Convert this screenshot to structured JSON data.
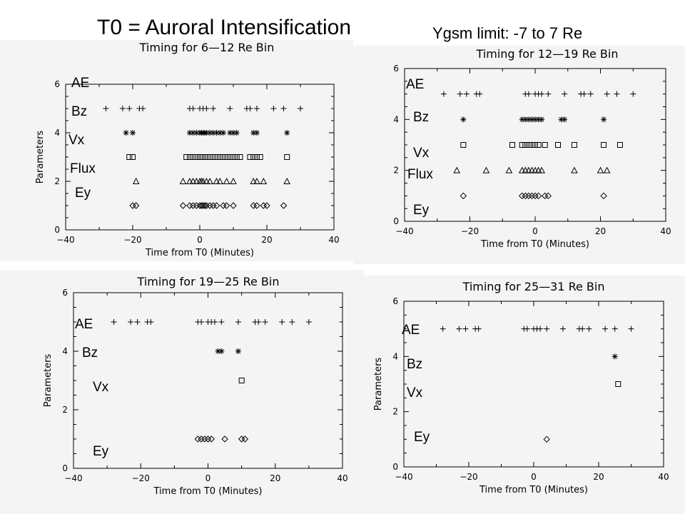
{
  "title": "T0 = Auroral Intensification",
  "subtitle": "Ygsm limit: -7 to 7 Re",
  "chart_data": [
    {
      "type": "scatter",
      "title": "Timing for 6—12 Re Bin",
      "xlabel": "Time from T0 (Minutes)",
      "ylabel": "Parameters",
      "xlim": [
        -40,
        40
      ],
      "ylim": [
        0,
        6
      ],
      "xticks": [
        "−40",
        "−20",
        "0",
        "20",
        "40"
      ],
      "yticks": [
        "0",
        "2",
        "4",
        "6"
      ],
      "row_labels": [
        "AE",
        "Bz",
        "Vx",
        "Flux",
        "Ey"
      ],
      "series": [
        {
          "name": "AE",
          "marker": "plus",
          "y": 5,
          "x": [
            -28,
            -23,
            -21,
            -18,
            -17,
            -3,
            -2,
            0,
            1,
            2,
            4,
            9,
            14,
            15,
            17,
            22,
            25,
            30
          ]
        },
        {
          "name": "Bz",
          "marker": "asterisk",
          "y": 4,
          "x": [
            -22,
            -20,
            -3,
            -2,
            -1,
            0,
            0.5,
            1,
            1.5,
            2,
            3,
            4,
            5,
            6,
            7,
            9,
            10,
            11,
            16,
            17,
            26
          ]
        },
        {
          "name": "Vx",
          "marker": "square",
          "y": 3,
          "x": [
            -21,
            -20,
            -4,
            -3,
            -2,
            -1,
            0,
            0.5,
            1,
            1.5,
            2,
            3,
            4,
            5,
            6,
            7,
            8,
            9,
            10,
            11,
            12,
            15,
            16,
            17,
            18,
            26
          ]
        },
        {
          "name": "Flux",
          "marker": "triangle",
          "y": 2,
          "x": [
            -19,
            -5,
            -3,
            -2,
            -1,
            0,
            0.5,
            1,
            2,
            3,
            5,
            6,
            8,
            10,
            16,
            17,
            19,
            26
          ]
        },
        {
          "name": "Ey",
          "marker": "diamond",
          "y": 1,
          "x": [
            -20,
            -19,
            -5,
            -3,
            -2,
            -1,
            0,
            0.5,
            1,
            1.5,
            2,
            3,
            4,
            5,
            7,
            8,
            10,
            16,
            17,
            19,
            20,
            25
          ]
        }
      ]
    },
    {
      "type": "scatter",
      "title": "Timing for 12—19 Re Bin",
      "xlabel": "Time from T0 (Minutes)",
      "ylabel": "",
      "xlim": [
        -40,
        40
      ],
      "ylim": [
        0,
        6
      ],
      "xticks": [
        "−40",
        "−20",
        "0",
        "20",
        "40"
      ],
      "yticks": [
        "0",
        "2",
        "4",
        "6"
      ],
      "row_labels": [
        "AE",
        "Bz",
        "Vx",
        "Flux",
        "Ey"
      ],
      "series": [
        {
          "name": "AE",
          "marker": "plus",
          "y": 5,
          "x": [
            -28,
            -23,
            -21,
            -18,
            -17,
            -3,
            -2,
            0,
            1,
            2,
            4,
            9,
            14,
            15,
            17,
            22,
            25,
            30
          ]
        },
        {
          "name": "Bz",
          "marker": "asterisk",
          "y": 4,
          "x": [
            -22,
            -4,
            -3,
            -2,
            -1,
            0,
            1,
            2,
            8,
            9,
            21
          ]
        },
        {
          "name": "Vx",
          "marker": "square",
          "y": 3,
          "x": [
            -22,
            -7,
            -4,
            -3,
            -2,
            -1,
            0,
            1,
            3,
            7,
            12,
            21,
            26
          ]
        },
        {
          "name": "Flux",
          "marker": "triangle",
          "y": 2,
          "x": [
            -24,
            -15,
            -8,
            -4,
            -3,
            -2,
            -1,
            0,
            1,
            2,
            12,
            20,
            22
          ]
        },
        {
          "name": "Ey",
          "marker": "diamond",
          "y": 1,
          "x": [
            -22,
            -4,
            -3,
            -2,
            -1,
            0,
            1,
            3,
            4,
            21
          ]
        }
      ]
    },
    {
      "type": "scatter",
      "title": "Timing for 19—25 Re Bin",
      "xlabel": "Time from T0 (Minutes)",
      "ylabel": "Parameters",
      "xlim": [
        -40,
        40
      ],
      "ylim": [
        0,
        6
      ],
      "xticks": [
        "−40",
        "−20",
        "0",
        "20",
        "40"
      ],
      "yticks": [
        "0",
        "2",
        "4",
        "6"
      ],
      "row_labels": [
        "AE",
        "Bz",
        "Vx",
        "Ey"
      ],
      "series": [
        {
          "name": "AE",
          "marker": "plus",
          "y": 5,
          "x": [
            -28,
            -23,
            -21,
            -18,
            -17,
            -3,
            -2,
            0,
            1,
            2,
            4,
            9,
            14,
            15,
            17,
            22,
            25,
            30
          ]
        },
        {
          "name": "Bz",
          "marker": "asterisk",
          "y": 4,
          "x": [
            3,
            4,
            9
          ]
        },
        {
          "name": "Vx",
          "marker": "square",
          "y": 3,
          "x": [
            10
          ]
        },
        {
          "name": "Ey",
          "marker": "diamond",
          "y": 1,
          "x": [
            -3,
            -2,
            -1,
            0,
            1,
            5,
            10,
            11
          ]
        }
      ]
    },
    {
      "type": "scatter",
      "title": "Timing for 25—31 Re Bin",
      "xlabel": "Time from T0 (Minutes)",
      "ylabel": "Parameters",
      "xlim": [
        -40,
        40
      ],
      "ylim": [
        0,
        6
      ],
      "xticks": [
        "−40",
        "−20",
        "0",
        "20",
        "40"
      ],
      "yticks": [
        "0",
        "2",
        "4",
        "6"
      ],
      "row_labels": [
        "AE",
        "Bz",
        "Vx",
        "Ey"
      ],
      "series": [
        {
          "name": "AE",
          "marker": "plus",
          "y": 5,
          "x": [
            -28,
            -23,
            -21,
            -18,
            -17,
            -3,
            -2,
            0,
            1,
            2,
            4,
            9,
            14,
            15,
            17,
            22,
            25,
            30
          ]
        },
        {
          "name": "Bz",
          "marker": "asterisk",
          "y": 4,
          "x": [
            25
          ]
        },
        {
          "name": "Vx",
          "marker": "square",
          "y": 3,
          "x": [
            26
          ]
        },
        {
          "name": "Ey",
          "marker": "diamond",
          "y": 1,
          "x": [
            4
          ]
        }
      ]
    }
  ]
}
